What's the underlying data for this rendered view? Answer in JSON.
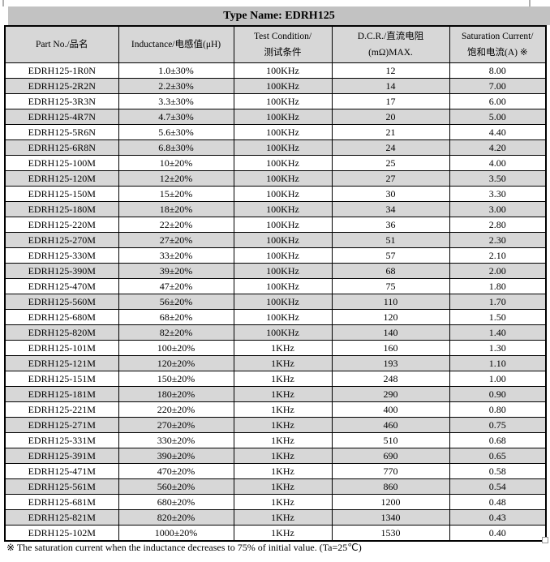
{
  "page": {
    "title": "Type Name: EDRH125",
    "note": "※  The saturation current when the inductance decreases to 75% of initial value. (Ta=25℃)"
  },
  "colors": {
    "title_bar_bg": "#c2c2c2",
    "header_bg": "#d7d7d7",
    "row_alt_bg": "#d7d7d7",
    "border": "#000000"
  },
  "table": {
    "columns": [
      {
        "line1": "Part No./品名"
      },
      {
        "line1": "Inductance/电感值(μH)"
      },
      {
        "line1": "Test Condition/",
        "line2": "测试条件"
      },
      {
        "line1": "D.C.R./直流电阻",
        "line2": "(mΩ)MAX."
      },
      {
        "line1": "Saturation Current/",
        "line2": "饱和电流(A)  ※"
      }
    ],
    "rows": [
      [
        "EDRH125-1R0N",
        "1.0±30%",
        "100KHz",
        "12",
        "8.00"
      ],
      [
        "EDRH125-2R2N",
        "2.2±30%",
        "100KHz",
        "14",
        "7.00"
      ],
      [
        "EDRH125-3R3N",
        "3.3±30%",
        "100KHz",
        "17",
        "6.00"
      ],
      [
        "EDRH125-4R7N",
        "4.7±30%",
        "100KHz",
        "20",
        "5.00"
      ],
      [
        "EDRH125-5R6N",
        "5.6±30%",
        "100KHz",
        "21",
        "4.40"
      ],
      [
        "EDRH125-6R8N",
        "6.8±30%",
        "100KHz",
        "24",
        "4.20"
      ],
      [
        "EDRH125-100M",
        "10±20%",
        "100KHz",
        "25",
        "4.00"
      ],
      [
        "EDRH125-120M",
        "12±20%",
        "100KHz",
        "27",
        "3.50"
      ],
      [
        "EDRH125-150M",
        "15±20%",
        "100KHz",
        "30",
        "3.30"
      ],
      [
        "EDRH125-180M",
        "18±20%",
        "100KHz",
        "34",
        "3.00"
      ],
      [
        "EDRH125-220M",
        "22±20%",
        "100KHz",
        "36",
        "2.80"
      ],
      [
        "EDRH125-270M",
        "27±20%",
        "100KHz",
        "51",
        "2.30"
      ],
      [
        "EDRH125-330M",
        "33±20%",
        "100KHz",
        "57",
        "2.10"
      ],
      [
        "EDRH125-390M",
        "39±20%",
        "100KHz",
        "68",
        "2.00"
      ],
      [
        "EDRH125-470M",
        "47±20%",
        "100KHz",
        "75",
        "1.80"
      ],
      [
        "EDRH125-560M",
        "56±20%",
        "100KHz",
        "110",
        "1.70"
      ],
      [
        "EDRH125-680M",
        "68±20%",
        "100KHz",
        "120",
        "1.50"
      ],
      [
        "EDRH125-820M",
        "82±20%",
        "100KHz",
        "140",
        "1.40"
      ],
      [
        "EDRH125-101M",
        "100±20%",
        "1KHz",
        "160",
        "1.30"
      ],
      [
        "EDRH125-121M",
        "120±20%",
        "1KHz",
        "193",
        "1.10"
      ],
      [
        "EDRH125-151M",
        "150±20%",
        "1KHz",
        "248",
        "1.00"
      ],
      [
        "EDRH125-181M",
        "180±20%",
        "1KHz",
        "290",
        "0.90"
      ],
      [
        "EDRH125-221M",
        "220±20%",
        "1KHz",
        "400",
        "0.80"
      ],
      [
        "EDRH125-271M",
        "270±20%",
        "1KHz",
        "460",
        "0.75"
      ],
      [
        "EDRH125-331M",
        "330±20%",
        "1KHz",
        "510",
        "0.68"
      ],
      [
        "EDRH125-391M",
        "390±20%",
        "1KHz",
        "690",
        "0.65"
      ],
      [
        "EDRH125-471M",
        "470±20%",
        "1KHz",
        "770",
        "0.58"
      ],
      [
        "EDRH125-561M",
        "560±20%",
        "1KHz",
        "860",
        "0.54"
      ],
      [
        "EDRH125-681M",
        "680±20%",
        "1KHz",
        "1200",
        "0.48"
      ],
      [
        "EDRH125-821M",
        "820±20%",
        "1KHz",
        "1340",
        "0.43"
      ],
      [
        "EDRH125-102M",
        "1000±20%",
        "1KHz",
        "1530",
        "0.40"
      ]
    ]
  }
}
